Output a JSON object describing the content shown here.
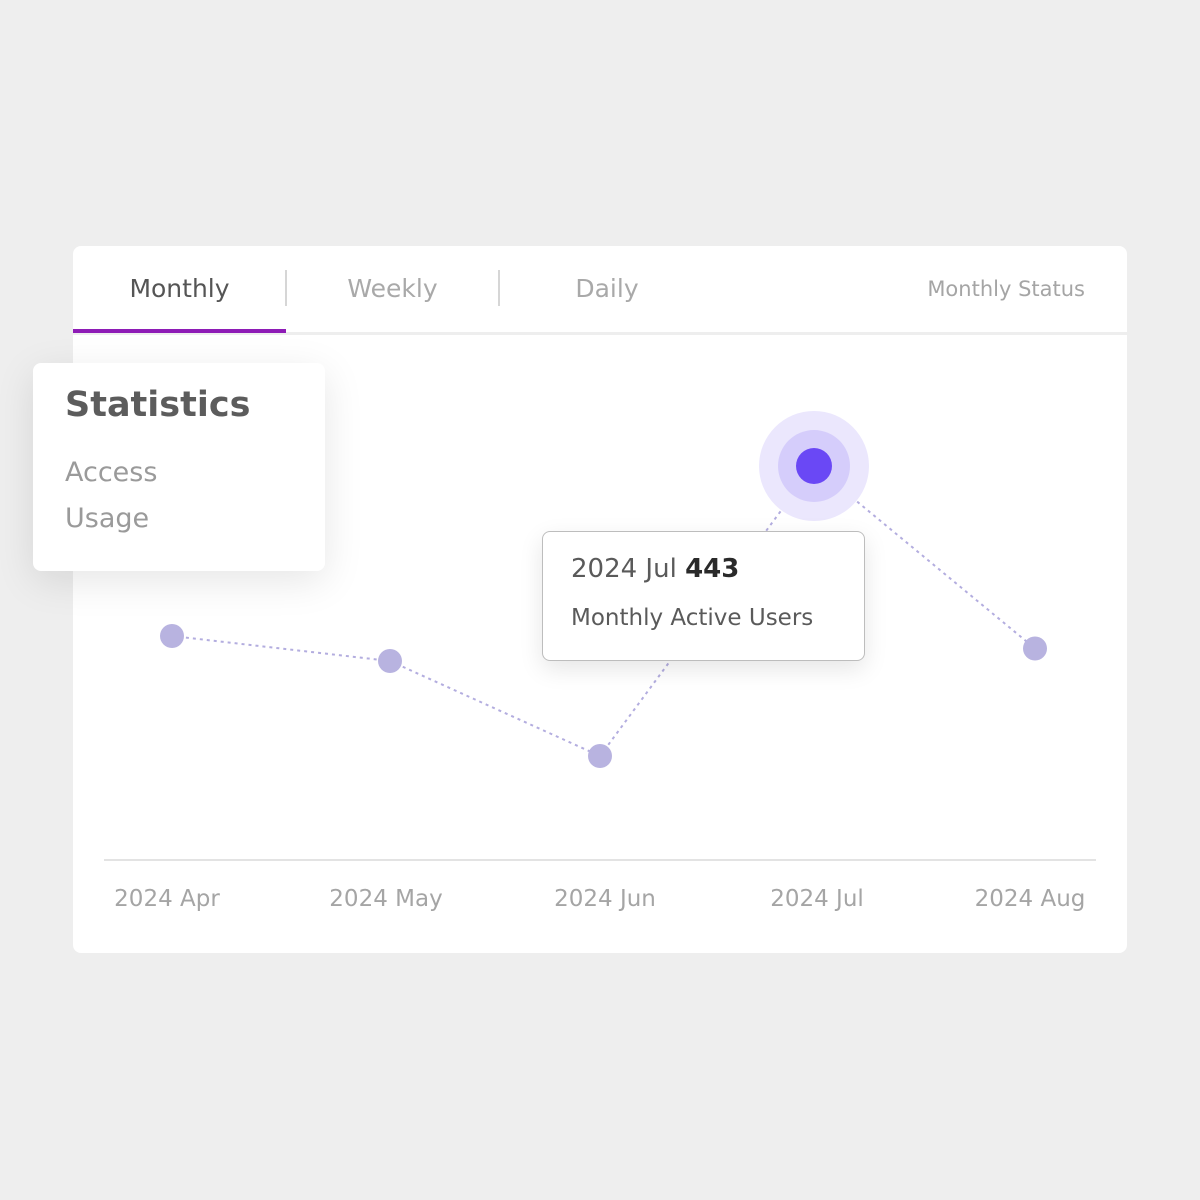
{
  "tabs": [
    {
      "label": "Monthly",
      "active": true
    },
    {
      "label": "Weekly",
      "active": false
    },
    {
      "label": "Daily",
      "active": false
    }
  ],
  "status_link": "Monthly Status",
  "stats_panel": {
    "title": "Statistics",
    "items": [
      "Access",
      "Usage"
    ]
  },
  "tooltip": {
    "period": "2024 Jul",
    "value": "443",
    "metric": "Monthly Active Users"
  },
  "colors": {
    "accent": "#8e1cb6",
    "highlight_point": "#6a48f5",
    "point": "#b8b3e0",
    "line": "#b3addf"
  },
  "chart_data": {
    "type": "line",
    "categories": [
      "2024 Apr",
      "2024 May",
      "2024 Jun",
      "2024 Jul",
      "2024 Aug"
    ],
    "values": [
      375,
      365,
      327,
      443,
      370
    ],
    "highlight_index": 3,
    "line_style": "dotted",
    "grid": false
  }
}
